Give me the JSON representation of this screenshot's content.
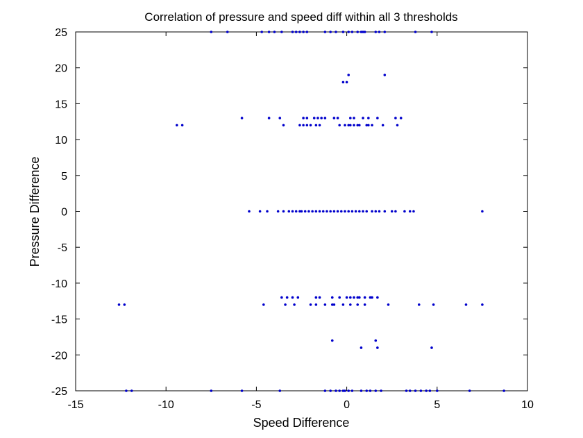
{
  "chart_data": {
    "type": "scatter",
    "title": "Correlation of pressure and speed diff within all 3 thresholds",
    "xlabel": "Speed Difference",
    "ylabel": "Pressure Difference",
    "xlim": [
      -15,
      10
    ],
    "ylim": [
      -25,
      25
    ],
    "xticks": [
      -15,
      -10,
      -5,
      0,
      5,
      10
    ],
    "yticks": [
      -25,
      -20,
      -15,
      -10,
      -5,
      0,
      5,
      10,
      15,
      20,
      25
    ],
    "grid": false,
    "legend": "none",
    "colors": {
      "marker": "#0000cc",
      "axes": "#000000"
    },
    "series": [
      {
        "points": [
          [
            -7.5,
            25
          ],
          [
            -6.6,
            25
          ],
          [
            -4.7,
            25
          ],
          [
            -4.3,
            25
          ],
          [
            -4.0,
            25
          ],
          [
            -3.6,
            25
          ],
          [
            -3.0,
            25
          ],
          [
            -2.8,
            25
          ],
          [
            -2.6,
            25
          ],
          [
            -2.4,
            25
          ],
          [
            -2.2,
            25
          ],
          [
            -1.2,
            25
          ],
          [
            -0.9,
            25
          ],
          [
            -0.6,
            25
          ],
          [
            -0.2,
            25
          ],
          [
            0.1,
            25
          ],
          [
            0.3,
            25
          ],
          [
            0.6,
            25
          ],
          [
            0.8,
            25
          ],
          [
            0.9,
            25
          ],
          [
            1.0,
            25
          ],
          [
            1.6,
            25
          ],
          [
            1.8,
            25
          ],
          [
            2.1,
            25
          ],
          [
            3.8,
            25
          ],
          [
            4.7,
            25
          ],
          [
            0.1,
            19
          ],
          [
            2.1,
            19
          ],
          [
            -0.2,
            18
          ],
          [
            0.0,
            18
          ],
          [
            -5.8,
            13
          ],
          [
            -4.3,
            13
          ],
          [
            -3.7,
            13
          ],
          [
            -2.4,
            13
          ],
          [
            -2.2,
            13
          ],
          [
            -1.8,
            13
          ],
          [
            -1.6,
            13
          ],
          [
            -1.4,
            13
          ],
          [
            -1.2,
            13
          ],
          [
            -0.7,
            13
          ],
          [
            -0.5,
            13
          ],
          [
            0.2,
            13
          ],
          [
            0.4,
            13
          ],
          [
            0.9,
            13
          ],
          [
            1.2,
            13
          ],
          [
            1.7,
            13
          ],
          [
            2.7,
            13
          ],
          [
            3.0,
            13
          ],
          [
            -9.4,
            12
          ],
          [
            -9.1,
            12
          ],
          [
            -3.5,
            12
          ],
          [
            -2.6,
            12
          ],
          [
            -2.4,
            12
          ],
          [
            -2.2,
            12
          ],
          [
            -2.0,
            12
          ],
          [
            -1.7,
            12
          ],
          [
            -1.5,
            12
          ],
          [
            -0.4,
            12
          ],
          [
            -0.1,
            12
          ],
          [
            0.1,
            12
          ],
          [
            0.2,
            12
          ],
          [
            0.4,
            12
          ],
          [
            0.6,
            12
          ],
          [
            0.7,
            12
          ],
          [
            1.1,
            12
          ],
          [
            1.2,
            12
          ],
          [
            1.4,
            12
          ],
          [
            2.0,
            12
          ],
          [
            2.8,
            12
          ],
          [
            -5.4,
            0
          ],
          [
            -4.8,
            0
          ],
          [
            -4.4,
            0
          ],
          [
            -3.8,
            0
          ],
          [
            -3.5,
            0
          ],
          [
            -3.2,
            0
          ],
          [
            -3.0,
            0
          ],
          [
            -2.8,
            0
          ],
          [
            -2.6,
            0
          ],
          [
            -2.5,
            0
          ],
          [
            -2.3,
            0
          ],
          [
            -2.1,
            0
          ],
          [
            -1.9,
            0
          ],
          [
            -1.7,
            0
          ],
          [
            -1.5,
            0
          ],
          [
            -1.3,
            0
          ],
          [
            -1.1,
            0
          ],
          [
            -0.9,
            0
          ],
          [
            -0.7,
            0
          ],
          [
            -0.5,
            0
          ],
          [
            -0.3,
            0
          ],
          [
            -0.1,
            0
          ],
          [
            0.1,
            0
          ],
          [
            0.3,
            0
          ],
          [
            0.5,
            0
          ],
          [
            0.7,
            0
          ],
          [
            0.9,
            0
          ],
          [
            1.1,
            0
          ],
          [
            1.4,
            0
          ],
          [
            1.6,
            0
          ],
          [
            1.8,
            0
          ],
          [
            2.1,
            0
          ],
          [
            2.5,
            0
          ],
          [
            2.7,
            0
          ],
          [
            3.2,
            0
          ],
          [
            3.5,
            0
          ],
          [
            3.7,
            0
          ],
          [
            7.5,
            0
          ],
          [
            -3.6,
            -12
          ],
          [
            -3.3,
            -12
          ],
          [
            -3.0,
            -12
          ],
          [
            -2.7,
            -12
          ],
          [
            -1.7,
            -12
          ],
          [
            -1.5,
            -12
          ],
          [
            -0.8,
            -12
          ],
          [
            -0.4,
            -12
          ],
          [
            0.0,
            -12
          ],
          [
            0.2,
            -12
          ],
          [
            0.4,
            -12
          ],
          [
            0.6,
            -12
          ],
          [
            0.7,
            -12
          ],
          [
            1.0,
            -12
          ],
          [
            1.3,
            -12
          ],
          [
            1.4,
            -12
          ],
          [
            1.7,
            -12
          ],
          [
            -12.6,
            -13
          ],
          [
            -12.3,
            -13
          ],
          [
            -4.6,
            -13
          ],
          [
            -3.4,
            -13
          ],
          [
            -2.9,
            -13
          ],
          [
            -2.0,
            -13
          ],
          [
            -1.7,
            -13
          ],
          [
            -1.2,
            -13
          ],
          [
            -0.8,
            -13
          ],
          [
            -0.7,
            -13
          ],
          [
            -0.2,
            -13
          ],
          [
            0.2,
            -13
          ],
          [
            0.6,
            -13
          ],
          [
            1.0,
            -13
          ],
          [
            2.3,
            -13
          ],
          [
            4.0,
            -13
          ],
          [
            4.8,
            -13
          ],
          [
            6.6,
            -13
          ],
          [
            7.5,
            -13
          ],
          [
            -0.8,
            -18
          ],
          [
            1.6,
            -18
          ],
          [
            0.8,
            -19
          ],
          [
            1.7,
            -19
          ],
          [
            4.7,
            -19
          ],
          [
            -12.2,
            -25
          ],
          [
            -11.9,
            -25
          ],
          [
            -7.5,
            -25
          ],
          [
            -5.8,
            -25
          ],
          [
            -3.7,
            -25
          ],
          [
            -1.2,
            -25
          ],
          [
            -0.9,
            -25
          ],
          [
            -0.6,
            -25
          ],
          [
            -0.4,
            -25
          ],
          [
            -0.2,
            -25
          ],
          [
            -0.1,
            -25
          ],
          [
            0.1,
            -25
          ],
          [
            0.3,
            -25
          ],
          [
            0.8,
            -25
          ],
          [
            1.1,
            -25
          ],
          [
            1.3,
            -25
          ],
          [
            1.6,
            -25
          ],
          [
            1.9,
            -25
          ],
          [
            3.3,
            -25
          ],
          [
            3.5,
            -25
          ],
          [
            3.8,
            -25
          ],
          [
            4.1,
            -25
          ],
          [
            4.4,
            -25
          ],
          [
            4.6,
            -25
          ],
          [
            5.0,
            -25
          ],
          [
            6.8,
            -25
          ],
          [
            8.7,
            -25
          ]
        ]
      }
    ]
  }
}
